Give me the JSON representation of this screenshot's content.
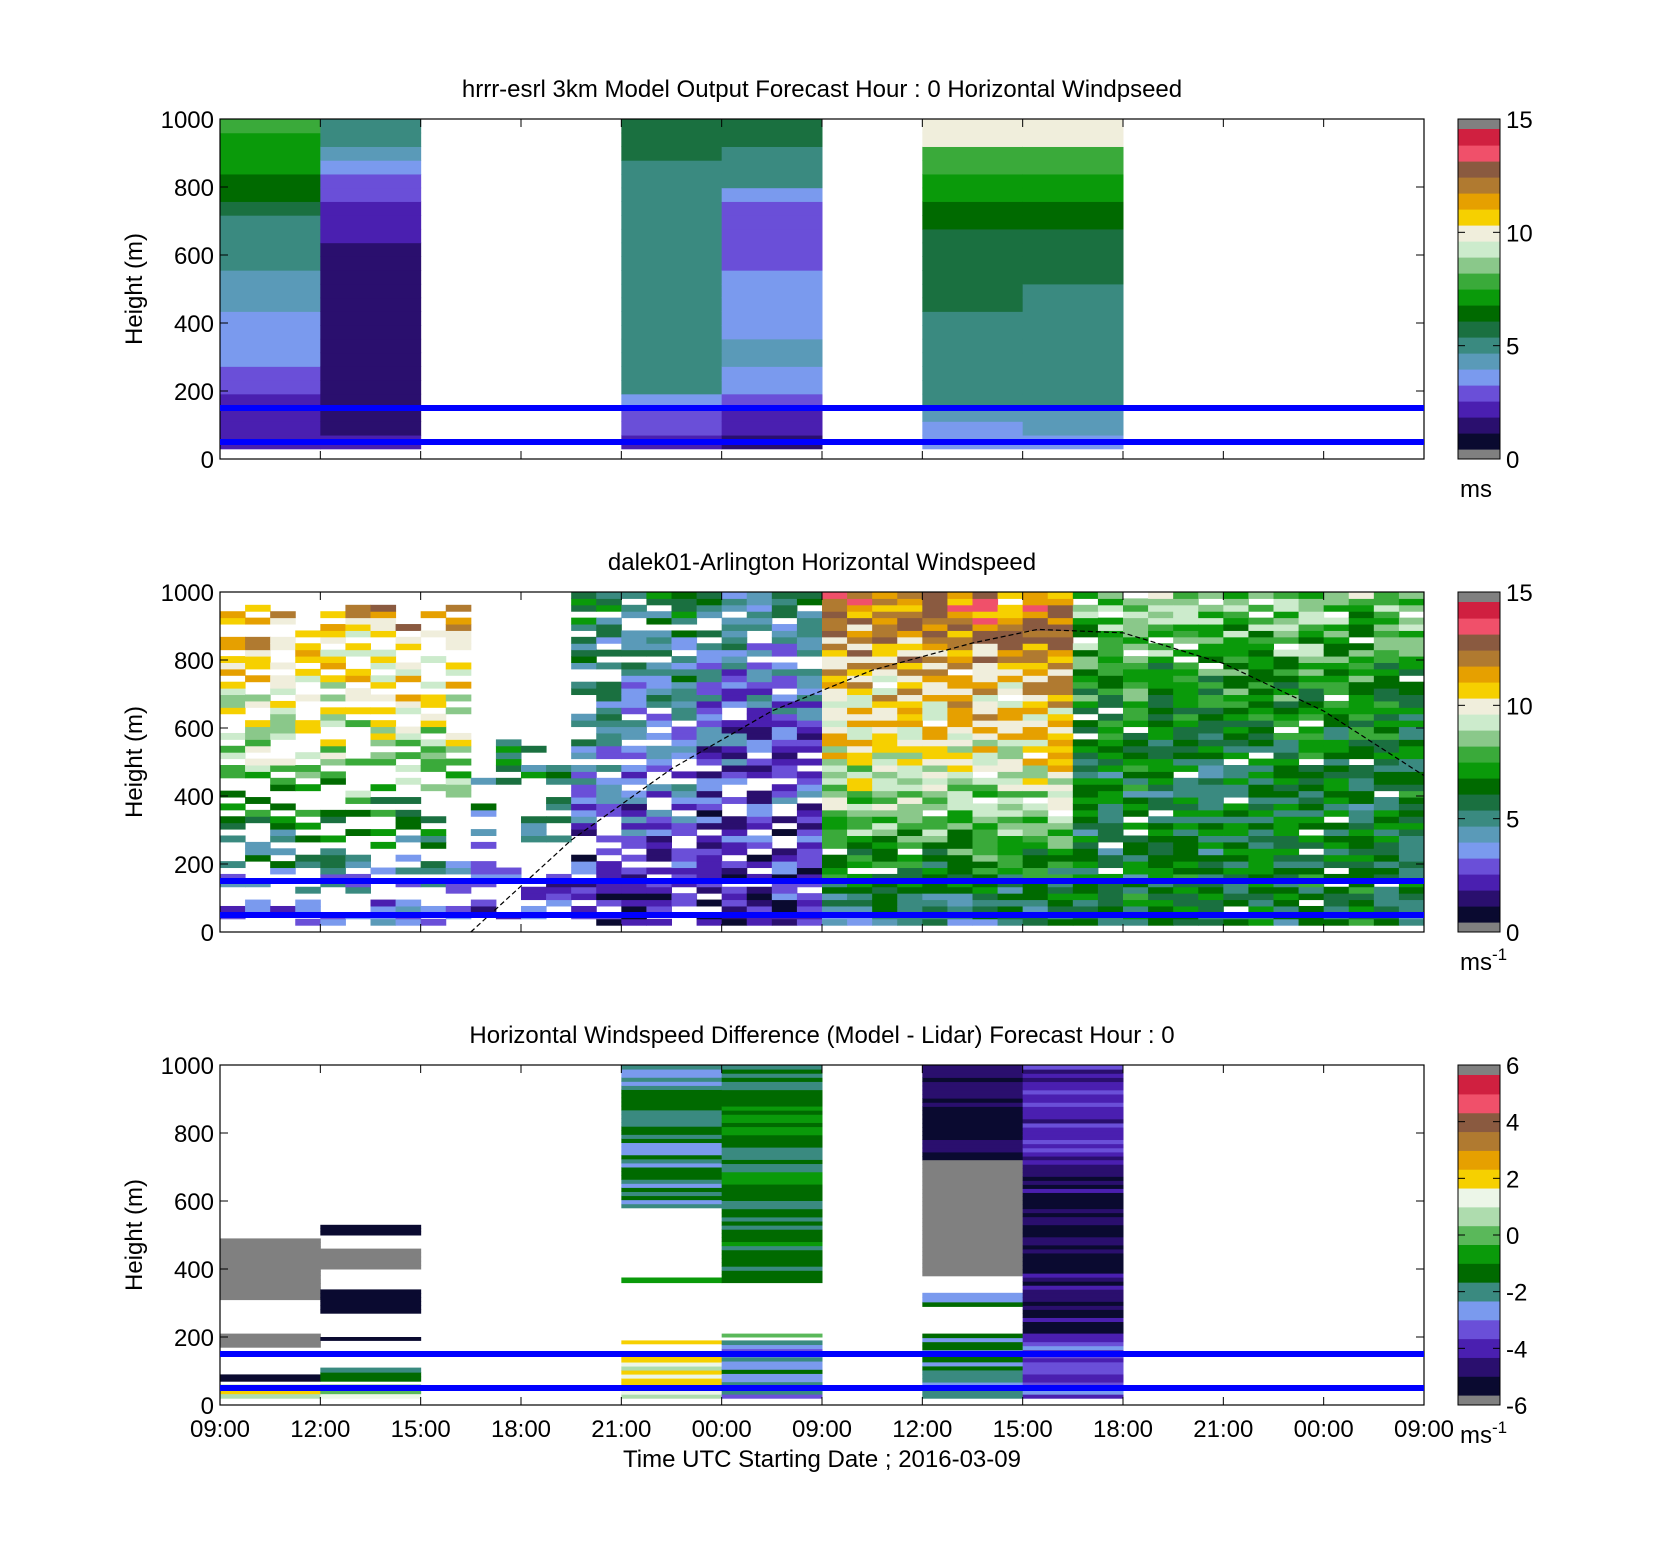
{
  "colors": {
    "speed_colormap": [
      "#0a0a30",
      "#2a0f6e",
      "#4a1fb0",
      "#6a4fd8",
      "#7a9aee",
      "#5a9ab8",
      "#3a8a80",
      "#1a7040",
      "#006a00",
      "#0a9a0a",
      "#3aaa3a",
      "#8ac88a",
      "#ccebcc",
      "#f0eedc",
      "#f6d000",
      "#e6a000",
      "#b07a30",
      "#8a5a40",
      "#f0506a",
      "#d02040"
    ],
    "diff_colormap": [
      "#0a0a30",
      "#2a0f6e",
      "#4a1fb0",
      "#6a4fd8",
      "#7a9aee",
      "#3a8a80",
      "#006a00",
      "#0a9a0a",
      "#5ab85a",
      "#aedcae",
      "#ecf6e8",
      "#f6d000",
      "#e6a000",
      "#b07a30",
      "#8a5a40",
      "#f0506a",
      "#d02040"
    ],
    "reference_lines": "#0000ff",
    "colorbar_end_gray": "#808080"
  },
  "chart_data": [
    {
      "type": "heatmap",
      "title": "hrrr-esrl 3km Model Output   Forecast Hour : 0 Horizontal Windpseed",
      "ylabel": "Height (m)",
      "xlabel": "",
      "ylim": [
        0,
        1000
      ],
      "yticks": [
        "0",
        "200",
        "400",
        "600",
        "800",
        "1000"
      ],
      "xticks": [
        "09:00",
        "12:00",
        "15:00",
        "18:00",
        "21:00",
        "00:00",
        "09:00",
        "12:00",
        "15:00",
        "18:00",
        "21:00",
        "00:00",
        "09:00"
      ],
      "colorbar": {
        "min": 0,
        "max": 15,
        "ticks": [
          "0",
          "5",
          "10",
          "15"
        ],
        "unit": "ms",
        "unit_superscript": ""
      },
      "reference_heights_m": [
        150,
        50
      ],
      "columns": [
        {
          "x_index": 0,
          "bottom_m": 30,
          "values": [
            2.0,
            1.9,
            2.1,
            2.2,
            2.5,
            2.8,
            3.0,
            3.2,
            3.5,
            3.7,
            3.9,
            4.1,
            4.3,
            4.5,
            4.8,
            5.0,
            5.2,
            5.6,
            6.0,
            6.4,
            6.8,
            7.2,
            7.4,
            7.6
          ]
        },
        {
          "x_index": 1,
          "bottom_m": 30,
          "values": [
            1.5,
            1.2,
            1.0,
            1.1,
            1.0,
            0.9,
            0.9,
            1.0,
            1.0,
            1.1,
            1.1,
            1.2,
            1.2,
            1.3,
            1.4,
            1.5,
            1.6,
            1.8,
            2.3,
            2.6,
            3.5,
            3.9,
            4.8,
            5.1
          ]
        },
        {
          "x_index": 4,
          "bottom_m": 30,
          "values": [
            1.6,
            2.3,
            2.9,
            3.6,
            4.8,
            4.9,
            5.0,
            5.0,
            5.0,
            5.0,
            5.0,
            5.0,
            5.0,
            5.0,
            5.0,
            5.0,
            5.0,
            5.0,
            5.0,
            5.0,
            5.2,
            5.3,
            5.4,
            5.5
          ]
        },
        {
          "x_index": 5,
          "bottom_m": 30,
          "values": [
            1.2,
            1.5,
            1.8,
            2.6,
            3.4,
            3.6,
            3.8,
            3.8,
            3.7,
            3.5,
            3.3,
            3.1,
            3.0,
            2.9,
            2.8,
            2.8,
            2.8,
            2.9,
            3.6,
            5.0,
            5.1,
            5.2,
            5.3,
            5.4
          ]
        },
        {
          "x_index": 7,
          "bottom_m": 30,
          "values": [
            3.4,
            3.6,
            4.2,
            4.7,
            5.0,
            5.1,
            5.1,
            5.2,
            5.2,
            5.2,
            5.3,
            5.3,
            5.3,
            5.3,
            5.4,
            5.6,
            6.0,
            6.2,
            6.8,
            7.0,
            7.6,
            8.2,
            9.8,
            9.8
          ]
        },
        {
          "x_index": 8,
          "bottom_m": 30,
          "values": [
            3.4,
            3.9,
            4.4,
            4.8,
            4.9,
            5.0,
            5.0,
            5.0,
            5.1,
            5.1,
            5.2,
            5.2,
            5.3,
            5.4,
            5.6,
            5.8,
            6.2,
            6.4,
            7.0,
            7.2,
            8.0,
            8.2,
            9.8,
            9.8
          ]
        }
      ]
    },
    {
      "type": "heatmap",
      "title": "dalek01-Arlington  Horizontal Windspeed",
      "ylabel": "Height (m)",
      "xlabel": "",
      "ylim": [
        0,
        1000
      ],
      "yticks": [
        "0",
        "200",
        "400",
        "600",
        "800",
        "1000"
      ],
      "xticks": [
        "09:00",
        "12:00",
        "15:00",
        "18:00",
        "21:00",
        "00:00",
        "09:00",
        "12:00",
        "15:00",
        "18:00",
        "21:00",
        "00:00",
        "09:00"
      ],
      "colorbar": {
        "min": 0,
        "max": 15,
        "ticks": [
          "0",
          "5",
          "10",
          "15"
        ],
        "unit": "ms",
        "unit_superscript": "-1"
      },
      "reference_heights_m": [
        150,
        50
      ],
      "segment_speed_profiles": [
        {
          "from_x": 0.0,
          "to_x": 2.4,
          "low": 2.0,
          "mid": 9.0,
          "high": 12.0,
          "top_m": 960,
          "coverage": 0.55
        },
        {
          "from_x": 2.4,
          "to_x": 3.4,
          "low": 1.5,
          "mid": 6.0,
          "high": 7.0,
          "top_m": 560,
          "coverage": 0.35
        },
        {
          "from_x": 3.4,
          "to_x": 4.7,
          "low": 1.2,
          "mid": 3.5,
          "high": 6.0,
          "top_m": 1000,
          "coverage": 0.75
        },
        {
          "from_x": 4.7,
          "to_x": 6.1,
          "low": 1.5,
          "mid": 2.5,
          "high": 5.0,
          "top_m": 1000,
          "coverage": 0.85
        },
        {
          "from_x": 6.1,
          "to_x": 8.4,
          "low": 4.5,
          "mid": 10.0,
          "high": 12.5,
          "top_m": 1000,
          "coverage": 0.97
        },
        {
          "from_x": 8.4,
          "to_x": 12.0,
          "low": 6.0,
          "mid": 6.0,
          "high": 8.5,
          "top_m": 1000,
          "coverage": 0.95
        }
      ],
      "boundary_layer_curve": [
        [
          2.5,
          0
        ],
        [
          3.5,
          270
        ],
        [
          4.5,
          480
        ],
        [
          5.5,
          650
        ],
        [
          6.5,
          770
        ],
        [
          7.5,
          850
        ],
        [
          8.15,
          890
        ],
        [
          9.0,
          880
        ],
        [
          10.0,
          790
        ],
        [
          11.0,
          650
        ],
        [
          12.0,
          460
        ]
      ]
    },
    {
      "type": "heatmap",
      "title": "Horizontal Windspeed Difference (Model - Lidar) Forecast Hour : 0",
      "ylabel": "Height (m)",
      "xlabel": "Time UTC  Starting Date ; 2016-03-09",
      "ylim": [
        0,
        1000
      ],
      "yticks": [
        "0",
        "200",
        "400",
        "600",
        "800",
        "1000"
      ],
      "xticks": [
        "09:00",
        "12:00",
        "15:00",
        "18:00",
        "21:00",
        "00:00",
        "09:00",
        "12:00",
        "15:00",
        "18:00",
        "21:00",
        "00:00",
        "09:00"
      ],
      "colorbar": {
        "min": -6,
        "max": 6,
        "ticks": [
          "-6",
          "-4",
          "-2",
          "0",
          "2",
          "4",
          "6"
        ],
        "unit": "ms",
        "unit_superscript": "-1"
      },
      "reference_heights_m": [
        150,
        50
      ],
      "bands": [
        {
          "x_index": 0,
          "from_m": 310,
          "to_m": 490,
          "value": 6.2
        },
        {
          "x_index": 0,
          "from_m": 170,
          "to_m": 210,
          "value": 6.2
        },
        {
          "x_index": 0,
          "from_m": 70,
          "to_m": 90,
          "value": -5.8
        },
        {
          "x_index": 0,
          "from_m": 20,
          "to_m": 60,
          "value": 1.0
        },
        {
          "x_index": 1,
          "from_m": 500,
          "to_m": 530,
          "value": -5.8
        },
        {
          "x_index": 1,
          "from_m": 400,
          "to_m": 460,
          "value": 6.2
        },
        {
          "x_index": 1,
          "from_m": 270,
          "to_m": 340,
          "value": -5.8
        },
        {
          "x_index": 1,
          "from_m": 190,
          "to_m": 200,
          "value": -5.8
        },
        {
          "x_index": 1,
          "from_m": 70,
          "to_m": 110,
          "value": -2.0
        },
        {
          "x_index": 1,
          "from_m": 20,
          "to_m": 60,
          "value": 1.0
        },
        {
          "x_index": 4,
          "from_m": 580,
          "to_m": 1000,
          "value": -2.0
        },
        {
          "x_index": 4,
          "from_m": 360,
          "to_m": 375,
          "value": 0.0
        },
        {
          "x_index": 4,
          "from_m": 180,
          "to_m": 190,
          "value": 2.0
        },
        {
          "x_index": 4,
          "from_m": 20,
          "to_m": 150,
          "value": 1.5
        },
        {
          "x_index": 5,
          "from_m": 360,
          "to_m": 1000,
          "value": -1.5
        },
        {
          "x_index": 5,
          "from_m": 200,
          "to_m": 210,
          "value": 0.0
        },
        {
          "x_index": 5,
          "from_m": 20,
          "to_m": 190,
          "value": -2.5
        },
        {
          "x_index": 7,
          "from_m": 720,
          "to_m": 1000,
          "value": -5.5
        },
        {
          "x_index": 7,
          "from_m": 380,
          "to_m": 720,
          "value": 6.2
        },
        {
          "x_index": 7,
          "from_m": 290,
          "to_m": 330,
          "value": -2.0
        },
        {
          "x_index": 7,
          "from_m": 20,
          "to_m": 210,
          "value": -2.2
        },
        {
          "x_index": 8,
          "from_m": 720,
          "to_m": 1000,
          "value": -4.0
        },
        {
          "x_index": 8,
          "from_m": 210,
          "to_m": 720,
          "value": -5.2
        },
        {
          "x_index": 8,
          "from_m": 20,
          "to_m": 210,
          "value": -3.8
        }
      ]
    }
  ]
}
